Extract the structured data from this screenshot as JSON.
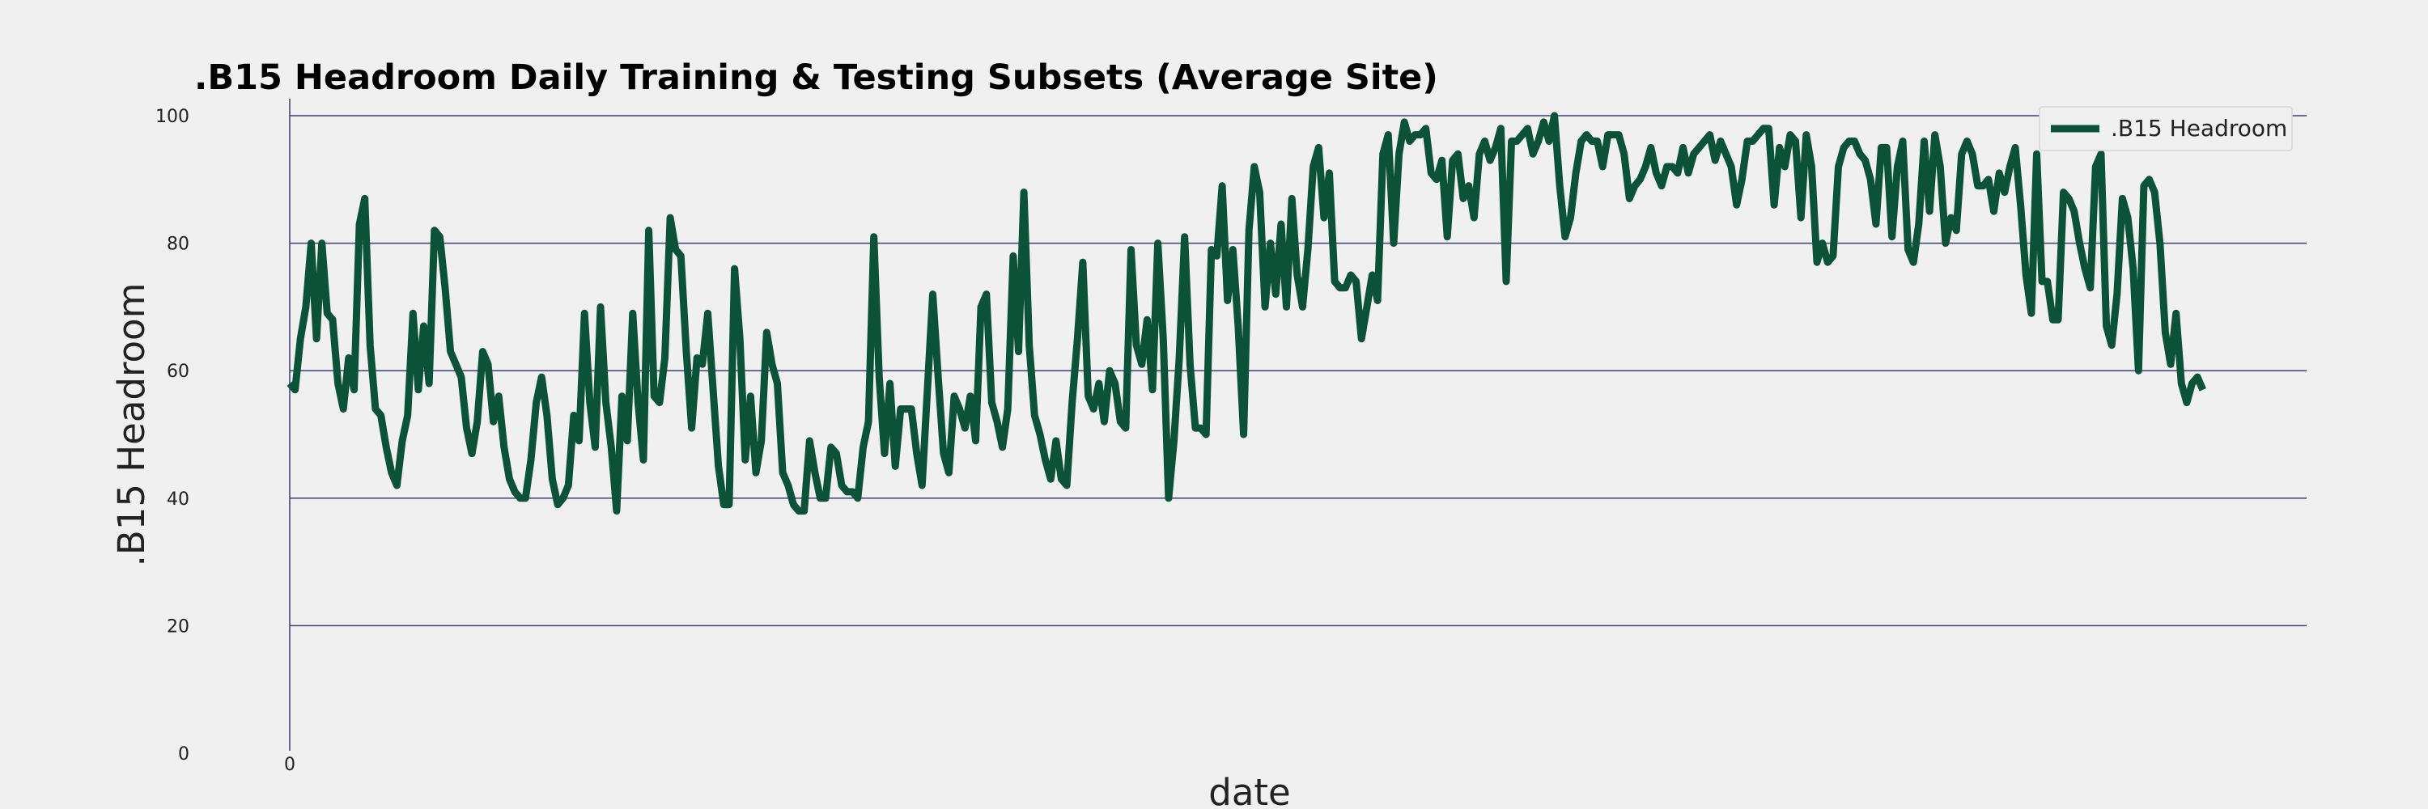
{
  "colors": {
    "background": "#f0f0f0",
    "line": "#0b5238",
    "grid": "#3b3f6e"
  },
  "chart_data": {
    "type": "line",
    "title": ".B15 Headroom Daily Training & Testing Subsets (Average Site)",
    "xlabel": "date",
    "ylabel": ".B15 Headroom",
    "ylim": [
      0,
      100
    ],
    "y_ticks": [
      0,
      20,
      40,
      60,
      80,
      100
    ],
    "x_ticks": [
      0
    ],
    "x_tick_labels": [
      "0"
    ],
    "xlim": [
      0,
      359
    ],
    "grid": "horizontal",
    "legend": {
      "position": "top-right"
    },
    "series": [
      {
        "name": ".B15 Headroom",
        "x": [
          0,
          1,
          2,
          3,
          4,
          5,
          6,
          7,
          8,
          9,
          10,
          11,
          12,
          13,
          14,
          15,
          16,
          17,
          18,
          19,
          20,
          21,
          22,
          23,
          24,
          25,
          26,
          27,
          28,
          29,
          30,
          31,
          32,
          33,
          34,
          35,
          36,
          37,
          38,
          39,
          40,
          41,
          42,
          43,
          44,
          45,
          46,
          47,
          48,
          49,
          50,
          51,
          52,
          53,
          54,
          55,
          56,
          57,
          58,
          59,
          60,
          61,
          62,
          63,
          64,
          65,
          66,
          67,
          68,
          69,
          70,
          71,
          72,
          73,
          74,
          75,
          76,
          77,
          78,
          79,
          80,
          81,
          82,
          83,
          84,
          85,
          86,
          87,
          88,
          89,
          90,
          91,
          92,
          93,
          94,
          95,
          96,
          97,
          98,
          99,
          100,
          101,
          102,
          103,
          104,
          105,
          106,
          107,
          108,
          109,
          110,
          111,
          112,
          113,
          114,
          115,
          116,
          117,
          118,
          119,
          120,
          121,
          122,
          123,
          124,
          125,
          126,
          127,
          128,
          129,
          130,
          131,
          132,
          133,
          134,
          135,
          136,
          137,
          138,
          139,
          140,
          141,
          142,
          143,
          144,
          145,
          146,
          147,
          148,
          149,
          150,
          151,
          152,
          153,
          154,
          155,
          156,
          157,
          158,
          159,
          160,
          161,
          162,
          163,
          164,
          165,
          166,
          167,
          168,
          169,
          170,
          171,
          172,
          173,
          174,
          175,
          176,
          177,
          178,
          179,
          180,
          181,
          182,
          183,
          184,
          185,
          186,
          187,
          188,
          189,
          190,
          191,
          192,
          193,
          194,
          195,
          196,
          197,
          198,
          199,
          200,
          201,
          202,
          203,
          204,
          205,
          206,
          207,
          208,
          209,
          210,
          211,
          212,
          213,
          214,
          215,
          216,
          217,
          218,
          219,
          220,
          221,
          222,
          223,
          224,
          225,
          226,
          227,
          228,
          229,
          230,
          231,
          232,
          233,
          234,
          235,
          236,
          237,
          238,
          239,
          240,
          241,
          242,
          243,
          244,
          245,
          246,
          247,
          248,
          249,
          250,
          251,
          252,
          253,
          254,
          255,
          256,
          257,
          258,
          259,
          260,
          261,
          262,
          263,
          264,
          265,
          266,
          267,
          268,
          269,
          270,
          271,
          272,
          273,
          274,
          275,
          276,
          277,
          278,
          279,
          280,
          281,
          282,
          283,
          284,
          285,
          286,
          287,
          288,
          289,
          290,
          291,
          292,
          293,
          294,
          295,
          296,
          297,
          298,
          299,
          300,
          301,
          302,
          303,
          304,
          305,
          306,
          307,
          308,
          309,
          310,
          311,
          312,
          313,
          314,
          315,
          316,
          317,
          318,
          319,
          320,
          321,
          322,
          323,
          324,
          325,
          326,
          327,
          328,
          329,
          330,
          331,
          332,
          333,
          334,
          335,
          336,
          337,
          338,
          339,
          340,
          341,
          342,
          343,
          344,
          345,
          346,
          347,
          348,
          349,
          350,
          351,
          352,
          353,
          354,
          355,
          356,
          357
        ],
        "values": [
          58,
          57,
          65,
          70,
          80,
          65,
          80,
          69,
          68,
          58,
          54,
          62,
          57,
          83,
          87,
          64,
          54,
          53,
          48,
          44,
          42,
          49,
          53,
          69,
          57,
          67,
          58,
          82,
          81,
          73,
          63,
          61,
          59,
          51,
          47,
          52,
          63,
          61,
          52,
          56,
          48,
          43,
          41,
          40,
          40,
          46,
          55,
          59,
          53,
          43,
          39,
          40,
          42,
          53,
          49,
          69,
          55,
          48,
          70,
          55,
          48,
          38,
          56,
          49,
          69,
          55,
          46,
          82,
          56,
          55,
          62,
          84,
          79,
          78,
          63,
          51,
          62,
          61,
          69,
          57,
          45,
          39,
          39,
          76,
          65,
          46,
          56,
          44,
          49,
          66,
          61,
          58,
          44,
          42,
          39,
          38,
          38,
          49,
          44,
          40,
          40,
          48,
          47,
          42,
          41,
          41,
          40,
          48,
          52,
          81,
          59,
          47,
          58,
          45,
          54,
          54,
          54,
          47,
          42,
          57,
          72,
          59,
          47,
          44,
          56,
          54,
          51,
          56,
          49,
          70,
          72,
          55,
          52,
          48,
          54,
          78,
          63,
          88,
          64,
          53,
          50,
          46,
          43,
          49,
          43,
          42,
          55,
          65,
          77,
          56,
          54,
          58,
          52,
          60,
          58,
          52,
          51,
          79,
          64,
          61,
          68,
          57,
          80,
          65,
          40,
          49,
          62,
          81,
          61,
          51,
          51,
          50,
          79,
          78,
          89,
          71,
          79,
          67,
          50,
          82,
          92,
          88,
          70,
          80,
          72,
          83,
          70,
          87,
          75,
          70,
          79,
          92,
          95,
          84,
          91,
          74,
          73,
          73,
          75,
          74,
          65,
          70,
          75,
          71,
          94,
          97,
          80,
          94,
          99,
          96,
          97,
          97,
          98,
          91,
          90,
          93,
          81,
          93,
          94,
          87,
          89,
          84,
          94,
          96,
          93,
          95,
          98,
          74,
          96,
          96,
          97,
          98,
          94,
          96,
          99,
          96,
          100,
          89,
          81,
          84,
          91,
          96,
          97,
          96,
          96,
          92,
          97,
          97,
          97,
          94,
          87,
          89,
          90,
          92,
          95,
          91,
          89,
          92,
          92,
          91,
          95,
          91,
          94,
          95,
          96,
          97,
          93,
          96,
          94,
          92,
          86,
          90,
          96,
          96,
          97,
          98,
          98,
          86,
          95,
          92,
          97,
          96,
          84,
          97,
          92,
          77,
          80,
          77,
          78,
          92,
          95,
          96,
          96,
          94,
          93,
          90,
          83,
          95,
          95,
          81,
          92,
          96,
          79,
          77,
          83,
          96,
          85,
          97,
          92,
          80,
          84,
          82,
          94,
          96,
          94,
          89,
          89,
          90,
          85,
          91,
          88,
          92,
          95,
          86,
          75,
          69,
          94,
          74,
          74,
          68,
          68,
          88,
          87,
          85,
          80,
          76,
          73,
          92,
          94,
          67,
          64,
          72,
          87,
          84,
          76,
          60,
          89,
          90,
          88,
          80,
          66,
          61,
          69,
          58,
          55,
          58,
          59,
          57
        ]
      }
    ]
  }
}
